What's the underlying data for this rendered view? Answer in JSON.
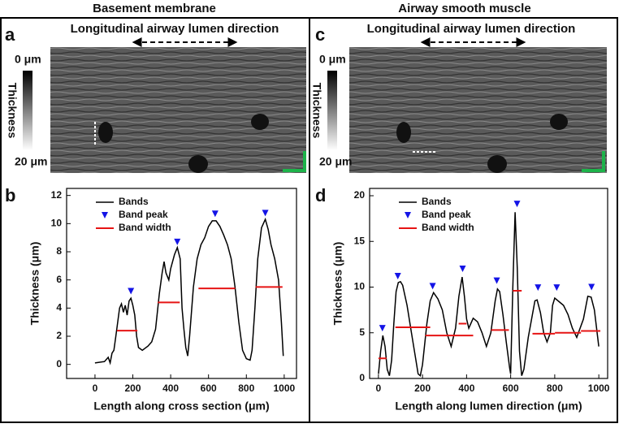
{
  "figure": {
    "columns": [
      {
        "title": "Basement membrane",
        "image_label": "a",
        "chart_label": "b",
        "direction": "Longitudinal airway lumen direction",
        "scale_top": "0 μm",
        "scale_title": "Thickness",
        "scale_bottom": "20 μm"
      },
      {
        "title": "Airway smooth muscle",
        "image_label": "c",
        "chart_label": "d",
        "direction": "Longitudinal airway lumen direction",
        "scale_top": "0 μm",
        "scale_title": "Thickness",
        "scale_bottom": "20 μm"
      }
    ]
  },
  "chart_data": [
    {
      "type": "line",
      "x_label": "Length along cross section (μm)",
      "y_label": "Thickness (μm)",
      "xlim": [
        -150,
        1065
      ],
      "ylim": [
        -1,
        12.5
      ],
      "xticks": [
        0,
        200,
        400,
        600,
        800,
        1000
      ],
      "yticks": [
        0,
        2,
        4,
        6,
        8,
        10,
        12
      ],
      "legend": "upper left",
      "series": [
        {
          "name": "Bands",
          "color": "#000000",
          "x": [
            0,
            50,
            70,
            80,
            90,
            100,
            110,
            120,
            130,
            140,
            150,
            160,
            170,
            180,
            190,
            200,
            210,
            220,
            230,
            250,
            280,
            300,
            320,
            340,
            355,
            365,
            375,
            390,
            400,
            420,
            435,
            450,
            460,
            470,
            480,
            490,
            500,
            520,
            540,
            560,
            580,
            600,
            620,
            640,
            660,
            680,
            700,
            720,
            740,
            760,
            780,
            800,
            820,
            830,
            845,
            860,
            880,
            900,
            915,
            930,
            950,
            970,
            985,
            995
          ],
          "values": [
            0.1,
            0.2,
            0.5,
            0.1,
            0.8,
            1.0,
            2.0,
            3.0,
            4.0,
            4.3,
            3.7,
            4.2,
            3.5,
            4.5,
            4.7,
            4.2,
            3.5,
            2.0,
            1.2,
            1.0,
            1.3,
            1.6,
            2.5,
            5.0,
            6.5,
            7.3,
            6.5,
            6.0,
            6.8,
            7.8,
            8.3,
            7.5,
            4.0,
            2.5,
            1.2,
            0.6,
            2.0,
            5.5,
            7.5,
            8.5,
            9.0,
            9.8,
            10.2,
            10.2,
            9.8,
            9.2,
            8.5,
            7.5,
            5.5,
            3.0,
            1.0,
            0.4,
            0.3,
            1.0,
            4.0,
            7.5,
            9.7,
            10.3,
            9.6,
            8.5,
            7.5,
            6.0,
            3.0,
            0.6
          ]
        },
        {
          "name": "Band peak",
          "color": "#1414e6",
          "marker": "triangle-down",
          "x": [
            190,
            435,
            635,
            900
          ],
          "values": [
            5.2,
            8.7,
            10.7,
            10.75
          ]
        },
        {
          "name": "Band width",
          "color": "#e61414",
          "x_start": [
            116,
            332,
            547,
            849
          ],
          "x_end": [
            224,
            448,
            741,
            991
          ],
          "values": [
            2.4,
            4.4,
            5.4,
            5.5
          ]
        }
      ]
    },
    {
      "type": "line",
      "x_label": "Length along lumen direction (μm)",
      "y_label": "Thickness (μm)",
      "xlim": [
        -40,
        1040
      ],
      "ylim": [
        0,
        20.8
      ],
      "xticks": [
        0,
        200,
        400,
        600,
        800,
        1000
      ],
      "yticks": [
        0,
        5,
        10,
        15,
        20
      ],
      "legend": "upper left",
      "series": [
        {
          "name": "Bands",
          "color": "#000000",
          "x": [
            0,
            10,
            20,
            30,
            40,
            50,
            60,
            70,
            80,
            90,
            100,
            110,
            130,
            150,
            170,
            180,
            190,
            200,
            220,
            235,
            250,
            270,
            290,
            310,
            330,
            350,
            365,
            380,
            390,
            400,
            410,
            430,
            450,
            470,
            490,
            510,
            530,
            540,
            550,
            565,
            580,
            595,
            600,
            610,
            620,
            630,
            640,
            650,
            660,
            680,
            695,
            710,
            720,
            735,
            750,
            765,
            780,
            790,
            800,
            820,
            840,
            860,
            880,
            900,
            930,
            950,
            965,
            980,
            990,
            1000
          ],
          "values": [
            0.5,
            3,
            4.7,
            3.5,
            1,
            0.3,
            2,
            6,
            9.5,
            10.5,
            10.6,
            10.2,
            8,
            5,
            2,
            0.5,
            0.3,
            1.5,
            6,
            8.5,
            9.4,
            8.7,
            7.5,
            5,
            3.5,
            5.5,
            9,
            11.1,
            9,
            6.5,
            5.5,
            6.6,
            6.2,
            5,
            3.5,
            5,
            8.5,
            9.8,
            9.5,
            7,
            4,
            1.2,
            0.5,
            10,
            18.2,
            12,
            3,
            0.3,
            1.0,
            4.5,
            6.5,
            8.5,
            8.6,
            7.2,
            5,
            4.0,
            5,
            8,
            8.8,
            8.4,
            8,
            7,
            5.5,
            4.5,
            6.5,
            9.0,
            8.9,
            7.5,
            5.5,
            3.5
          ]
        },
        {
          "name": "Band peak",
          "color": "#1414e6",
          "marker": "triangle-down",
          "x": [
            18,
            88,
            246,
            382,
            537,
            629,
            724,
            809,
            967
          ],
          "values": [
            5.5,
            11.2,
            10.1,
            12,
            10.7,
            19.1,
            9.95,
            9.95,
            10
          ]
        },
        {
          "name": "Band width",
          "color": "#e61414",
          "x_start": [
            0,
            77,
            213,
            364,
            511,
            610,
            699,
            801,
            919
          ],
          "x_end": [
            37,
            235,
            430,
            400,
            592,
            650,
            801,
            919,
            1007
          ],
          "values": [
            2.2,
            5.6,
            4.7,
            6.0,
            5.3,
            9.6,
            4.9,
            5.0,
            5.2
          ]
        }
      ]
    }
  ]
}
